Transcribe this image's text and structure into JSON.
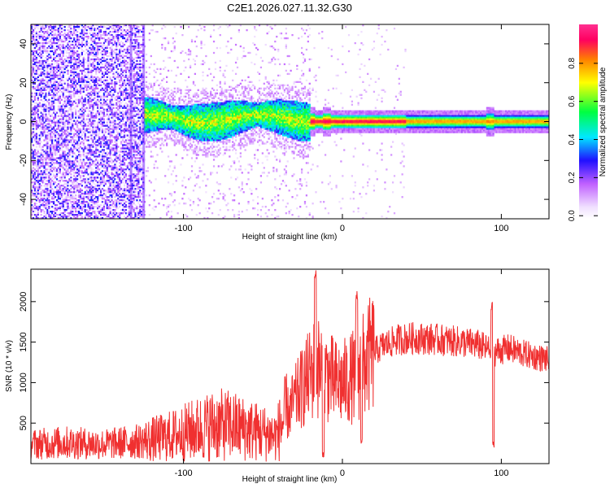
{
  "title": "C2E1.2026.027.11.32.G30",
  "chart_data": [
    {
      "type": "heatmap",
      "xlabel": "Height of straight line (km)",
      "ylabel": "Frequency (Hz)",
      "xlim": [
        -196,
        130
      ],
      "ylim": [
        -50,
        50
      ],
      "xticks": [
        -100,
        0,
        100
      ],
      "yticks": [
        -40,
        -20,
        0,
        20,
        40
      ],
      "grid": false,
      "colorbar": {
        "label": "Normalized spectral amplitude",
        "range": [
          0,
          1
        ],
        "ticks": [
          "0.0",
          "0.2",
          "0.4",
          "0.6",
          "0.8"
        ],
        "colors": [
          "#ffffff",
          "#c060ff",
          "#2010ff",
          "#00e8ff",
          "#00ff40",
          "#ffff00",
          "#ff8000",
          "#ff0060"
        ]
      },
      "features": {
        "noise_region_x": [
          -196,
          -125
        ],
        "tracked_band_x": [
          -125,
          130
        ],
        "scattered_region_x": [
          -125,
          -20
        ],
        "line_center_hz": 0,
        "line_width_hz": 4,
        "glitch_x": [
          -20,
          -10,
          93
        ]
      }
    },
    {
      "type": "line",
      "xlabel": "Height of straight line (km)",
      "ylabel": "SNR (10 * v/v)",
      "xlim": [
        -196,
        130
      ],
      "ylim": [
        0,
        2400
      ],
      "xticks": [
        -100,
        0,
        100
      ],
      "yticks": [
        500,
        1000,
        1500,
        2000
      ],
      "color": "#f03030",
      "grid": false,
      "series": [
        {
          "name": "SNR",
          "x": [
            -196,
            -175,
            -150,
            -125,
            -110,
            -100,
            -90,
            -80,
            -70,
            -60,
            -50,
            -42,
            -36,
            -30,
            -25,
            -20,
            -17,
            -12,
            -5,
            0,
            5,
            9,
            12,
            18,
            25,
            35,
            45,
            55,
            65,
            75,
            85,
            93,
            95,
            97,
            105,
            115,
            130
          ],
          "y": [
            240,
            260,
            240,
            280,
            330,
            380,
            430,
            480,
            470,
            420,
            380,
            340,
            560,
            780,
            950,
            1100,
            1200,
            1150,
            1000,
            990,
            1050,
            1100,
            1180,
            1350,
            1450,
            1530,
            1550,
            1540,
            1520,
            1500,
            1470,
            1400,
            1350,
            1390,
            1420,
            1350,
            1280
          ]
        }
      ],
      "spikes": [
        {
          "x": -17,
          "y": 2400
        },
        {
          "x": 9,
          "y": 2160
        },
        {
          "x": 94,
          "y": 2050
        }
      ],
      "dips": [
        {
          "x": -12,
          "y": 80
        },
        {
          "x": 12,
          "y": 240
        },
        {
          "x": 95,
          "y": 200
        }
      ]
    }
  ]
}
